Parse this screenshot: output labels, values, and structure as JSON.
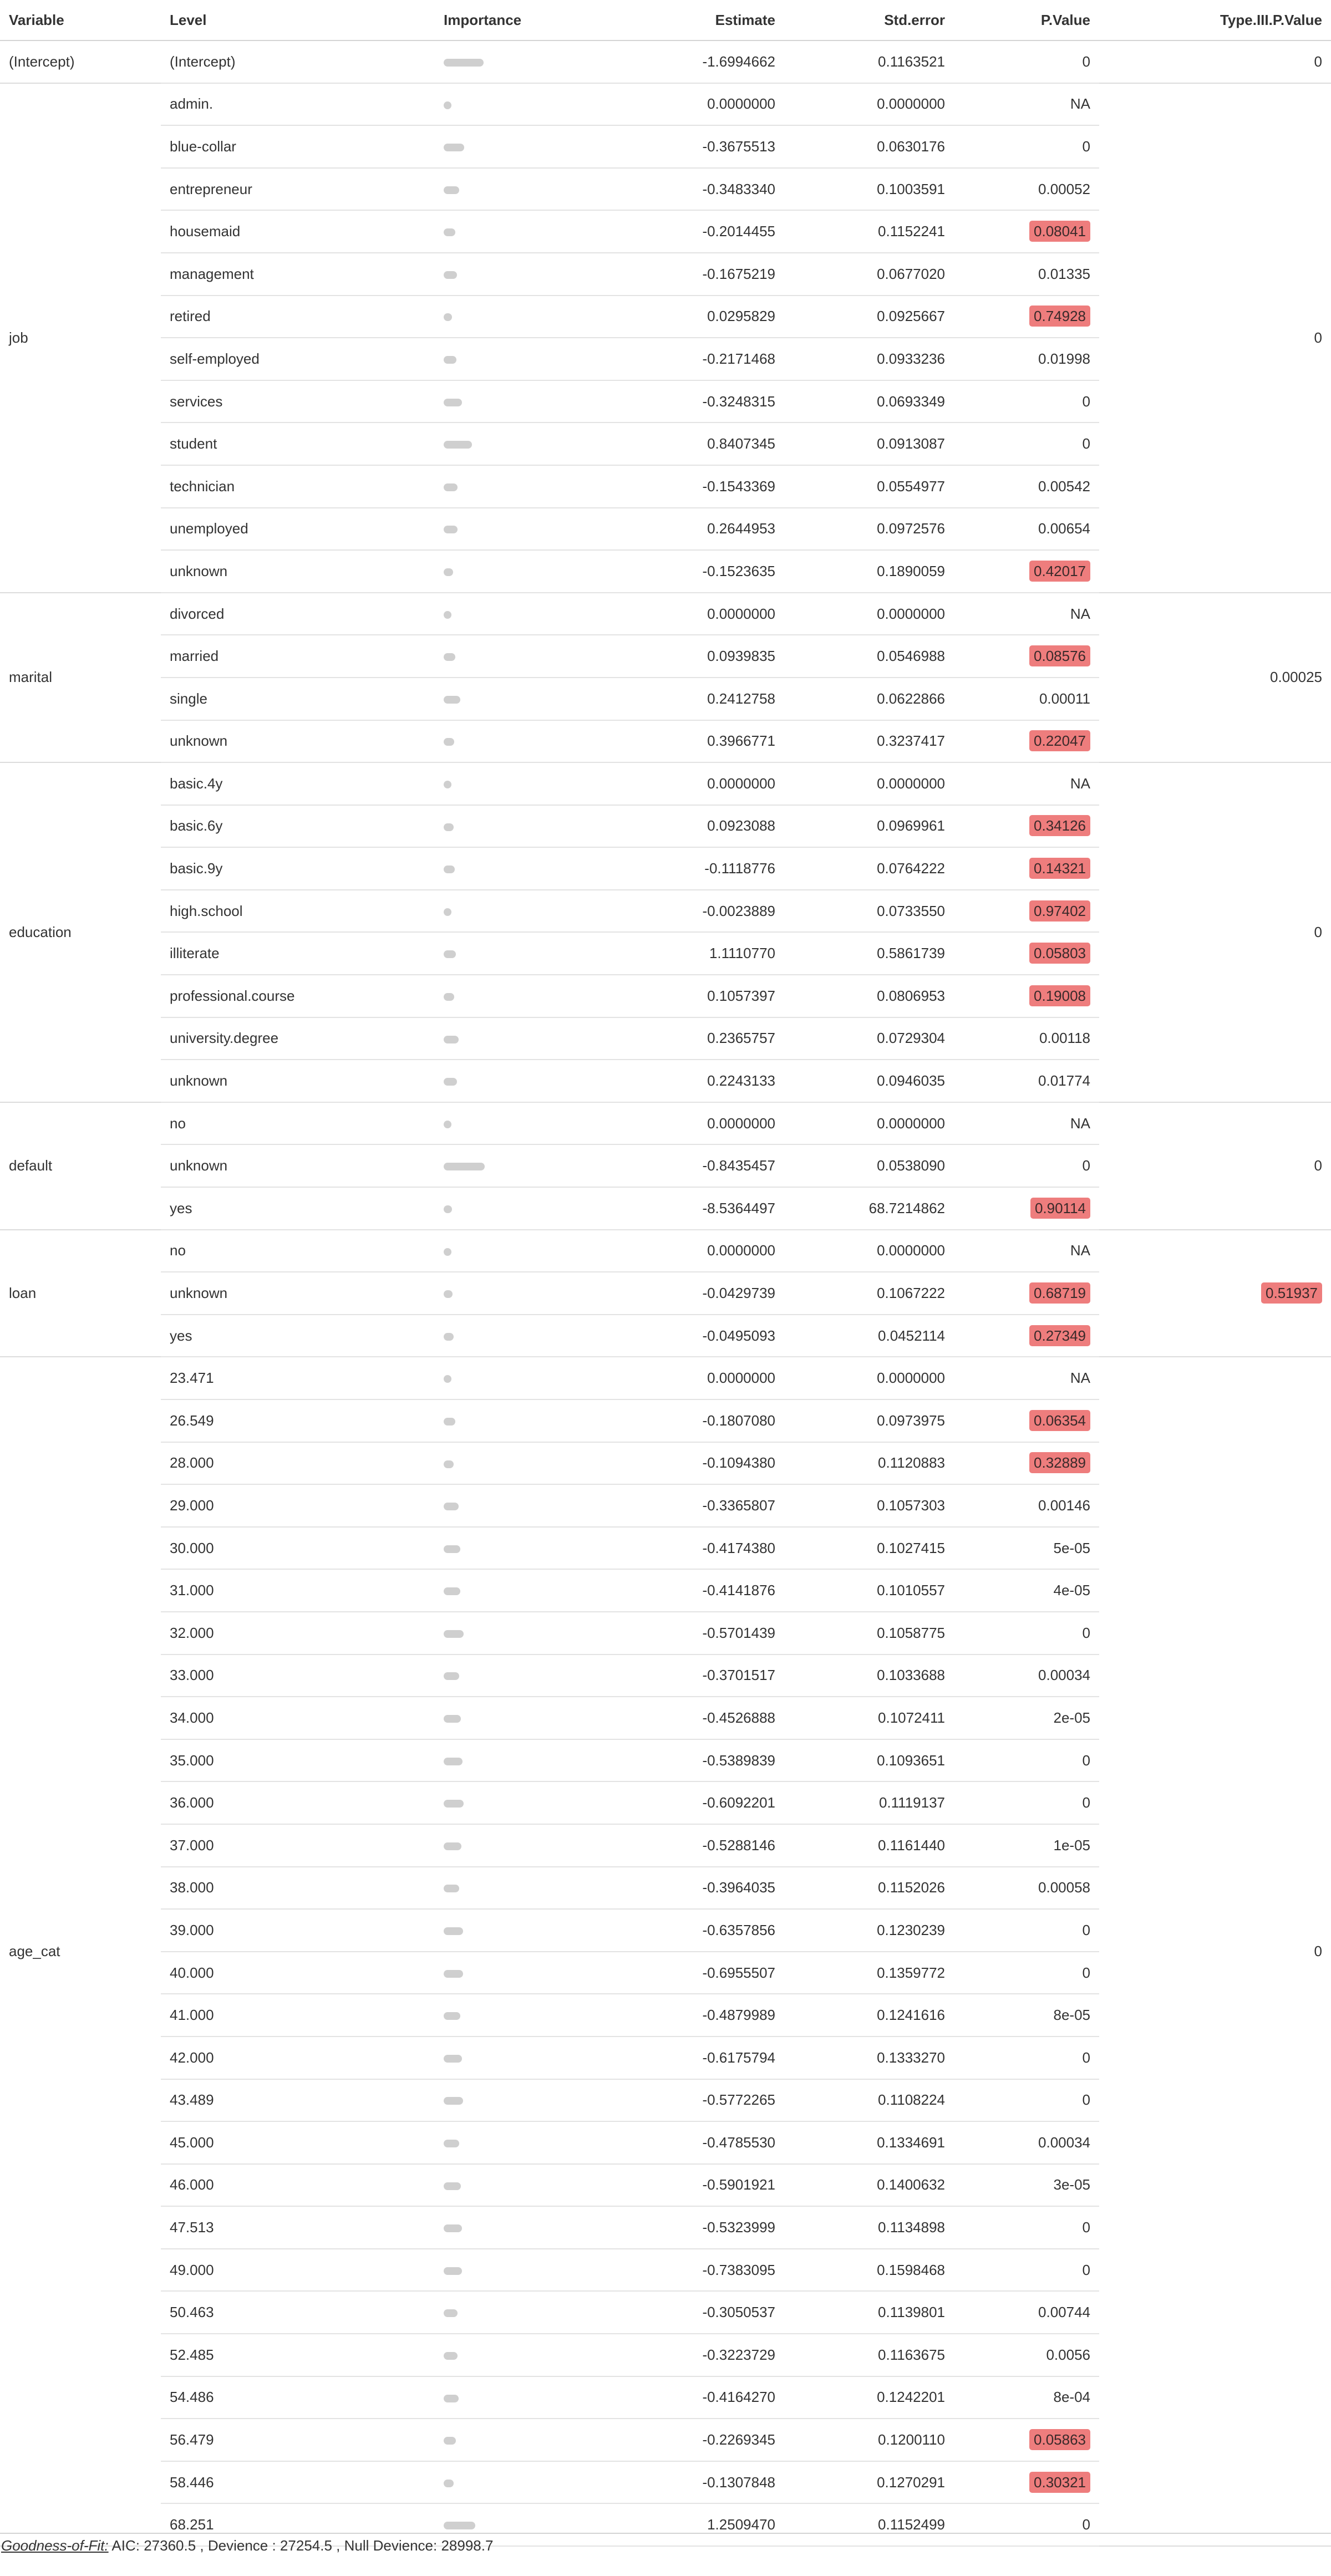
{
  "columns": [
    "Variable",
    "Level",
    "Importance",
    "Estimate",
    "Std.error",
    "P.Value",
    "Type.III.P.Value"
  ],
  "highlight_color": "#ee7d7d",
  "importance_bar_color": "#cfcfcf",
  "highlight_threshold": 0.05,
  "groups": [
    {
      "variable": "(Intercept)",
      "type3": "0",
      "rows": [
        {
          "level": "(Intercept)",
          "estimate": "-1.6994662",
          "se": "0.1163521",
          "p": "0"
        }
      ]
    },
    {
      "variable": "job",
      "type3": "0",
      "rows": [
        {
          "level": "admin.",
          "estimate": "0.0000000",
          "se": "0.0000000",
          "p": "NA"
        },
        {
          "level": "blue-collar",
          "estimate": "-0.3675513",
          "se": "0.0630176",
          "p": "0"
        },
        {
          "level": "entrepreneur",
          "estimate": "-0.3483340",
          "se": "0.1003591",
          "p": "0.00052"
        },
        {
          "level": "housemaid",
          "estimate": "-0.2014455",
          "se": "0.1152241",
          "p": "0.08041"
        },
        {
          "level": "management",
          "estimate": "-0.1675219",
          "se": "0.0677020",
          "p": "0.01335"
        },
        {
          "level": "retired",
          "estimate": "0.0295829",
          "se": "0.0925667",
          "p": "0.74928"
        },
        {
          "level": "self-employed",
          "estimate": "-0.2171468",
          "se": "0.0933236",
          "p": "0.01998"
        },
        {
          "level": "services",
          "estimate": "-0.3248315",
          "se": "0.0693349",
          "p": "0"
        },
        {
          "level": "student",
          "estimate": "0.8407345",
          "se": "0.0913087",
          "p": "0"
        },
        {
          "level": "technician",
          "estimate": "-0.1543369",
          "se": "0.0554977",
          "p": "0.00542"
        },
        {
          "level": "unemployed",
          "estimate": "0.2644953",
          "se": "0.0972576",
          "p": "0.00654"
        },
        {
          "level": "unknown",
          "estimate": "-0.1523635",
          "se": "0.1890059",
          "p": "0.42017"
        }
      ]
    },
    {
      "variable": "marital",
      "type3": "0.00025",
      "rows": [
        {
          "level": "divorced",
          "estimate": "0.0000000",
          "se": "0.0000000",
          "p": "NA"
        },
        {
          "level": "married",
          "estimate": "0.0939835",
          "se": "0.0546988",
          "p": "0.08576"
        },
        {
          "level": "single",
          "estimate": "0.2412758",
          "se": "0.0622866",
          "p": "0.00011"
        },
        {
          "level": "unknown",
          "estimate": "0.3966771",
          "se": "0.3237417",
          "p": "0.22047"
        }
      ]
    },
    {
      "variable": "education",
      "type3": "0",
      "rows": [
        {
          "level": "basic.4y",
          "estimate": "0.0000000",
          "se": "0.0000000",
          "p": "NA"
        },
        {
          "level": "basic.6y",
          "estimate": "0.0923088",
          "se": "0.0969961",
          "p": "0.34126"
        },
        {
          "level": "basic.9y",
          "estimate": "-0.1118776",
          "se": "0.0764222",
          "p": "0.14321"
        },
        {
          "level": "high.school",
          "estimate": "-0.0023889",
          "se": "0.0733550",
          "p": "0.97402"
        },
        {
          "level": "illiterate",
          "estimate": "1.1110770",
          "se": "0.5861739",
          "p": "0.05803"
        },
        {
          "level": "professional.course",
          "estimate": "0.1057397",
          "se": "0.0806953",
          "p": "0.19008"
        },
        {
          "level": "university.degree",
          "estimate": "0.2365757",
          "se": "0.0729304",
          "p": "0.00118"
        },
        {
          "level": "unknown",
          "estimate": "0.2243133",
          "se": "0.0946035",
          "p": "0.01774"
        }
      ]
    },
    {
      "variable": "default",
      "type3": "0",
      "rows": [
        {
          "level": "no",
          "estimate": "0.0000000",
          "se": "0.0000000",
          "p": "NA"
        },
        {
          "level": "unknown",
          "estimate": "-0.8435457",
          "se": "0.0538090",
          "p": "0"
        },
        {
          "level": "yes",
          "estimate": "-8.5364497",
          "se": "68.7214862",
          "p": "0.90114"
        }
      ]
    },
    {
      "variable": "loan",
      "type3": "0.51937",
      "rows": [
        {
          "level": "no",
          "estimate": "0.0000000",
          "se": "0.0000000",
          "p": "NA"
        },
        {
          "level": "unknown",
          "estimate": "-0.0429739",
          "se": "0.1067222",
          "p": "0.68719"
        },
        {
          "level": "yes",
          "estimate": "-0.0495093",
          "se": "0.0452114",
          "p": "0.27349"
        }
      ]
    },
    {
      "variable": "age_cat",
      "type3": "0",
      "rows": [
        {
          "level": "23.471",
          "estimate": "0.0000000",
          "se": "0.0000000",
          "p": "NA"
        },
        {
          "level": "26.549",
          "estimate": "-0.1807080",
          "se": "0.0973975",
          "p": "0.06354"
        },
        {
          "level": "28.000",
          "estimate": "-0.1094380",
          "se": "0.1120883",
          "p": "0.32889"
        },
        {
          "level": "29.000",
          "estimate": "-0.3365807",
          "se": "0.1057303",
          "p": "0.00146"
        },
        {
          "level": "30.000",
          "estimate": "-0.4174380",
          "se": "0.1027415",
          "p": "5e-05"
        },
        {
          "level": "31.000",
          "estimate": "-0.4141876",
          "se": "0.1010557",
          "p": "4e-05"
        },
        {
          "level": "32.000",
          "estimate": "-0.5701439",
          "se": "0.1058775",
          "p": "0"
        },
        {
          "level": "33.000",
          "estimate": "-0.3701517",
          "se": "0.1033688",
          "p": "0.00034"
        },
        {
          "level": "34.000",
          "estimate": "-0.4526888",
          "se": "0.1072411",
          "p": "2e-05"
        },
        {
          "level": "35.000",
          "estimate": "-0.5389839",
          "se": "0.1093651",
          "p": "0"
        },
        {
          "level": "36.000",
          "estimate": "-0.6092201",
          "se": "0.1119137",
          "p": "0"
        },
        {
          "level": "37.000",
          "estimate": "-0.5288146",
          "se": "0.1161440",
          "p": "1e-05"
        },
        {
          "level": "38.000",
          "estimate": "-0.3964035",
          "se": "0.1152026",
          "p": "0.00058"
        },
        {
          "level": "39.000",
          "estimate": "-0.6357856",
          "se": "0.1230239",
          "p": "0"
        },
        {
          "level": "40.000",
          "estimate": "-0.6955507",
          "se": "0.1359772",
          "p": "0"
        },
        {
          "level": "41.000",
          "estimate": "-0.4879989",
          "se": "0.1241616",
          "p": "8e-05"
        },
        {
          "level": "42.000",
          "estimate": "-0.6175794",
          "se": "0.1333270",
          "p": "0"
        },
        {
          "level": "43.489",
          "estimate": "-0.5772265",
          "se": "0.1108224",
          "p": "0"
        },
        {
          "level": "45.000",
          "estimate": "-0.4785530",
          "se": "0.1334691",
          "p": "0.00034"
        },
        {
          "level": "46.000",
          "estimate": "-0.5901921",
          "se": "0.1400632",
          "p": "3e-05"
        },
        {
          "level": "47.513",
          "estimate": "-0.5323999",
          "se": "0.1134898",
          "p": "0"
        },
        {
          "level": "49.000",
          "estimate": "-0.7383095",
          "se": "0.1598468",
          "p": "0"
        },
        {
          "level": "50.463",
          "estimate": "-0.3050537",
          "se": "0.1139801",
          "p": "0.00744"
        },
        {
          "level": "52.485",
          "estimate": "-0.3223729",
          "se": "0.1163675",
          "p": "0.0056"
        },
        {
          "level": "54.486",
          "estimate": "-0.4164270",
          "se": "0.1242201",
          "p": "8e-04"
        },
        {
          "level": "56.479",
          "estimate": "-0.2269345",
          "se": "0.1200110",
          "p": "0.05863"
        },
        {
          "level": "58.446",
          "estimate": "-0.1307848",
          "se": "0.1270291",
          "p": "0.30321"
        },
        {
          "level": "68.251",
          "estimate": "1.2509470",
          "se": "0.1152499",
          "p": "0"
        }
      ]
    }
  ],
  "footer": {
    "label": "Goodness-of-Fit:",
    "text": " AIC: 27360.5 , Devience : 27254.5 , Null Devience: 28998.7"
  }
}
